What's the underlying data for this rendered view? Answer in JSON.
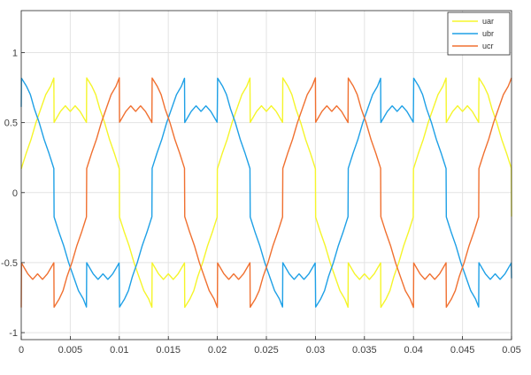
{
  "chart_data": {
    "type": "line",
    "xlim": [
      0,
      0.05
    ],
    "ylim": [
      -1.05,
      1.3
    ],
    "grid": true,
    "legend_position": "top-right",
    "x_ticks": [
      0,
      0.005,
      0.01,
      0.015,
      0.02,
      0.025,
      0.03,
      0.035,
      0.04,
      0.045,
      0.05
    ],
    "x_tick_labels": [
      "0",
      "0.005",
      "0.01",
      "0.015",
      "0.02",
      "0.025",
      "0.03",
      "0.035",
      "0.04",
      "0.045",
      "0.05"
    ],
    "y_ticks": [
      -1,
      -0.5,
      0,
      0.5,
      1
    ],
    "y_tick_labels": [
      "-1",
      "-0.5",
      "0",
      "0.5",
      "1"
    ],
    "period": 0.02,
    "series": [
      {
        "name": "uar",
        "color": "#f5f52a",
        "phase": 0
      },
      {
        "name": "ubr",
        "color": "#1ea0e6",
        "phase": -0.0066667
      },
      {
        "name": "ucr",
        "color": "#f07030",
        "phase": 0.0066667
      }
    ],
    "waveform_half_cycle": {
      "description": "sampled values of one positive half-cycle (t from 0 to period/2), negative half is the mirror",
      "t_frac": [
        0,
        0.025,
        0.05,
        0.075,
        0.1,
        0.125,
        0.15,
        0.1667,
        0.1668,
        0.2,
        0.225,
        0.25,
        0.275,
        0.3,
        0.3333,
        0.3334,
        0.36,
        0.38,
        0.4,
        0.425,
        0.45,
        0.475,
        0.5
      ],
      "values": [
        0.17,
        0.28,
        0.38,
        0.5,
        0.6,
        0.7,
        0.76,
        0.82,
        0.5,
        0.58,
        0.62,
        0.58,
        0.62,
        0.58,
        0.5,
        0.82,
        0.76,
        0.7,
        0.6,
        0.5,
        0.38,
        0.28,
        0.17
      ]
    }
  }
}
